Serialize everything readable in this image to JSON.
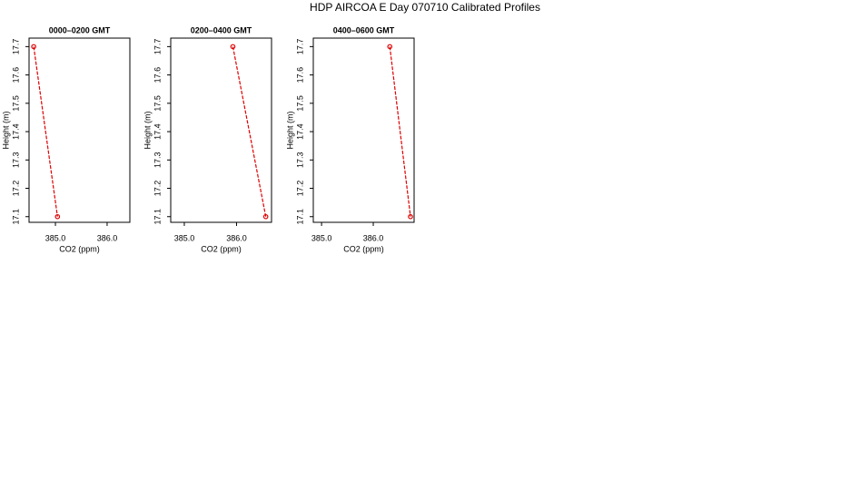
{
  "title": "HDP AIRCOA E  Day 070710  Calibrated Profiles",
  "chart_data": [
    {
      "type": "line",
      "title": "0000–0200 GMT",
      "xlabel": "CO2 (ppm)",
      "ylabel": "Height (m)",
      "series": [
        {
          "color": "#dd0000",
          "x": [
            384.58,
            385.04
          ],
          "values": [
            17.7,
            17.1
          ]
        }
      ],
      "xlim": [
        384.49,
        386.44
      ],
      "xticks": [
        {
          "value": 385,
          "label": "385.0"
        },
        {
          "value": 386,
          "label": "386.0"
        }
      ],
      "ylim": [
        17.08,
        17.73
      ],
      "yticks": [
        17.1,
        17.2,
        17.3,
        17.4,
        17.5,
        17.6,
        17.7
      ]
    },
    {
      "type": "line",
      "title": "0200–0400 GMT",
      "xlabel": "CO2 (ppm)",
      "ylabel": "Height (m)",
      "series": [
        {
          "color": "#dd0000",
          "x": [
            385.93,
            386.56
          ],
          "values": [
            17.7,
            17.1
          ]
        }
      ],
      "xlim": [
        384.74,
        386.67
      ],
      "xticks": [
        {
          "value": 385,
          "label": "385.0"
        },
        {
          "value": 386,
          "label": "386.0"
        }
      ],
      "ylim": [
        17.08,
        17.73
      ],
      "yticks": [
        17.1,
        17.2,
        17.3,
        17.4,
        17.5,
        17.6,
        17.7
      ]
    },
    {
      "type": "line",
      "title": "0400–0600 GMT",
      "xlabel": "CO2 (ppm)",
      "ylabel": "Height (m)",
      "series": [
        {
          "color": "#dd0000",
          "x": [
            386.32,
            386.72
          ],
          "values": [
            17.7,
            17.1
          ]
        }
      ],
      "xlim": [
        384.84,
        386.79
      ],
      "xticks": [
        {
          "value": 385,
          "label": "385.0"
        },
        {
          "value": 386,
          "label": "386.0"
        }
      ],
      "ylim": [
        17.08,
        17.73
      ],
      "yticks": [
        17.1,
        17.2,
        17.3,
        17.4,
        17.5,
        17.6,
        17.7
      ]
    }
  ]
}
